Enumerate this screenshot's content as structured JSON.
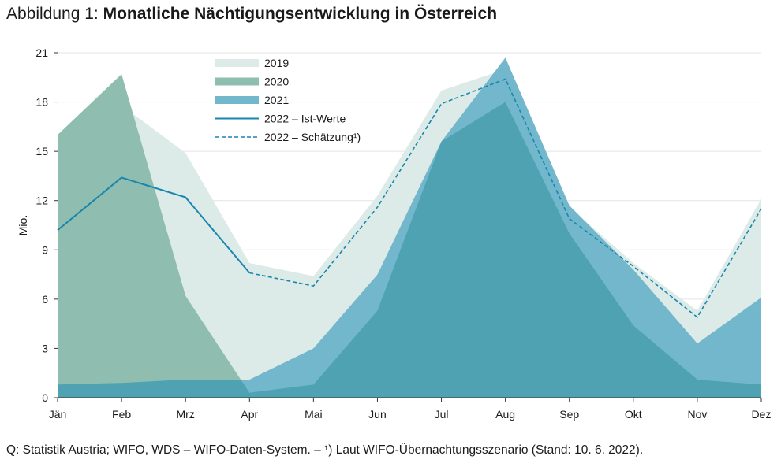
{
  "title": {
    "prefix": "Abbildung 1:",
    "main": "Monatliche Nächtigungsentwicklung in Österreich"
  },
  "footnote": "Q: Statistik Austria; WIFO, WDS – WIFO-Daten-System. – ¹) Laut WIFO-Übernachtungsszenario (Stand: 10. 6. 2022).",
  "chart_data": {
    "type": "area",
    "categories": [
      "Jän",
      "Feb",
      "Mrz",
      "Apr",
      "Mai",
      "Jun",
      "Jul",
      "Aug",
      "Sep",
      "Okt",
      "Nov",
      "Dez"
    ],
    "ylabel": "Mio.",
    "xlabel": "",
    "ylim": [
      0,
      21
    ],
    "yticks": [
      0,
      3,
      6,
      9,
      12,
      15,
      18,
      21
    ],
    "grid": "horizontal",
    "legend_position": "top-center",
    "series": [
      {
        "name": "2019",
        "kind": "area",
        "color": "#dcebe7",
        "values": [
          15.4,
          17.8,
          14.9,
          8.2,
          7.4,
          12.3,
          18.7,
          20.0,
          11.6,
          8.2,
          5.3,
          12.1
        ]
      },
      {
        "name": "2020",
        "kind": "area",
        "color": "#8fbdaf",
        "values": [
          16.0,
          19.7,
          6.2,
          0.3,
          0.8,
          5.3,
          15.6,
          18.0,
          10.0,
          4.4,
          1.1,
          0.8
        ]
      },
      {
        "name": "2021",
        "kind": "area",
        "color": "#72b7cb",
        "values": [
          0.8,
          0.9,
          1.1,
          1.1,
          3.0,
          7.5,
          15.6,
          20.7,
          11.7,
          7.8,
          3.3,
          6.1
        ]
      },
      {
        "name": "2022 – Ist-Werte",
        "kind": "line",
        "color": "#1a86ad",
        "x": [
          "Jän",
          "Feb",
          "Mrz",
          "Apr"
        ],
        "values": [
          10.2,
          13.4,
          12.2,
          7.6
        ]
      },
      {
        "name": "2022 – Schätzung¹)",
        "kind": "dashed-line",
        "color": "#1a86ad",
        "x": [
          "Apr",
          "Mai",
          "Jun",
          "Jul",
          "Aug",
          "Sep",
          "Okt",
          "Nov",
          "Dez"
        ],
        "values": [
          7.6,
          6.8,
          11.6,
          17.9,
          19.4,
          10.9,
          8.0,
          4.9,
          11.5
        ]
      }
    ],
    "overlap_color": "#4fa2b2"
  }
}
